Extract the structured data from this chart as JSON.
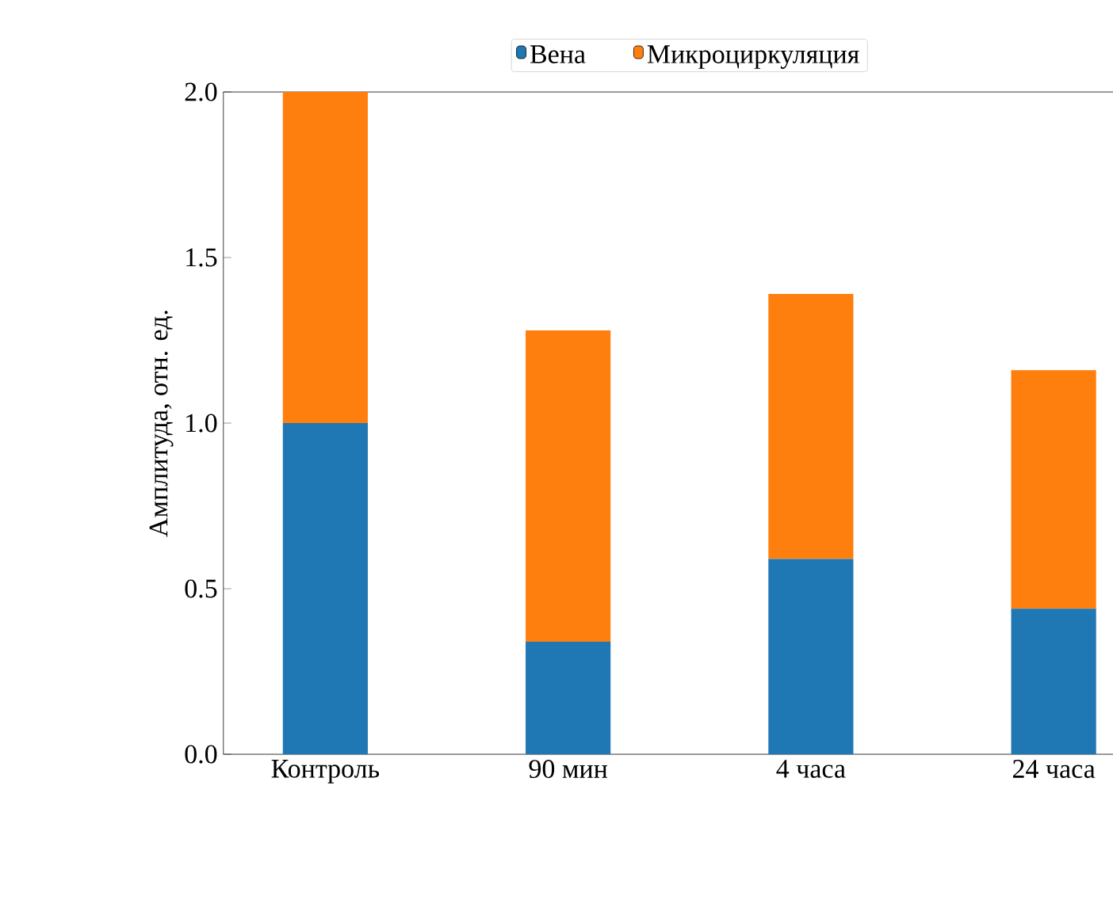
{
  "chart_data": {
    "type": "bar",
    "stacked": true,
    "ylabel": "Амплитуда, отн. ед.",
    "categories": [
      "Контроль",
      "90 мин",
      "4 часа",
      "24 часа"
    ],
    "series": [
      {
        "name": "Вена",
        "color": "#1f77b4",
        "values": [
          1.0,
          0.34,
          0.59,
          0.44
        ]
      },
      {
        "name": "Микроциркуляция",
        "color": "#ff7f0e",
        "values": [
          1.0,
          0.94,
          0.8,
          0.72
        ]
      }
    ],
    "ylim": [
      0,
      2.0
    ],
    "yticks": [
      {
        "value": 0,
        "label": "0.0"
      },
      {
        "value": 0.5,
        "label": "0.5"
      },
      {
        "value": 1.0,
        "label": "1.0"
      },
      {
        "value": 1.5,
        "label": "1.5"
      },
      {
        "value": 2.0,
        "label": "2.0"
      }
    ],
    "legend": "top"
  }
}
